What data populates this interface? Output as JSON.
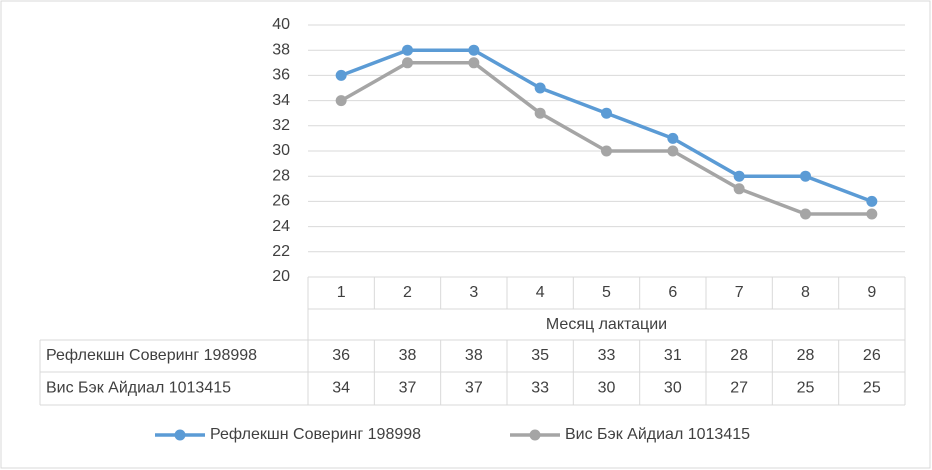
{
  "chart_data": {
    "type": "line",
    "x_label": "Месяц лактации",
    "categories": [
      "1",
      "2",
      "3",
      "4",
      "5",
      "6",
      "7",
      "8",
      "9"
    ],
    "series": [
      {
        "name": "Рефлекшн Соверинг 198998",
        "color": "#5b9bd5",
        "values": [
          36,
          38,
          38,
          35,
          33,
          31,
          28,
          28,
          26
        ]
      },
      {
        "name": "Вис Бэк Айдиал 1013415",
        "color": "#a5a5a5",
        "values": [
          34,
          37,
          37,
          33,
          30,
          30,
          27,
          25,
          25
        ]
      }
    ],
    "ylim": [
      20,
      40
    ],
    "yticks": [
      20,
      22,
      24,
      26,
      28,
      30,
      32,
      34,
      36,
      38,
      40
    ],
    "grid": true,
    "legend": "bottom"
  }
}
